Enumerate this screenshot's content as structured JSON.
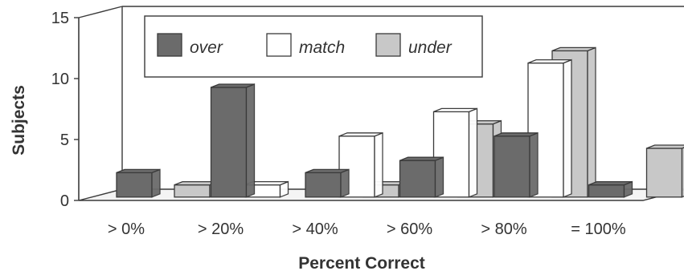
{
  "chart_data": {
    "type": "bar",
    "title": "",
    "xlabel": "Percent Correct",
    "ylabel": "Subjects",
    "categories": [
      "> 0%",
      "> 20%",
      "> 40%",
      "> 60%",
      "> 80%",
      "= 100%"
    ],
    "series": [
      {
        "name": "over",
        "values": [
          2,
          9,
          2,
          3,
          5,
          1
        ],
        "color": "#6b6b6b"
      },
      {
        "name": "match",
        "values": [
          0,
          1,
          5,
          7,
          11,
          0
        ],
        "color": "#ffffff"
      },
      {
        "name": "under",
        "values": [
          1,
          0,
          1,
          6,
          12,
          4
        ],
        "color": "#c8c8c8"
      }
    ],
    "ylim": [
      0,
      15
    ],
    "yticks": [
      "0",
      "5",
      "10",
      "15"
    ],
    "grid": false,
    "legend_position": "top-left",
    "projection": "3d-perspective"
  }
}
